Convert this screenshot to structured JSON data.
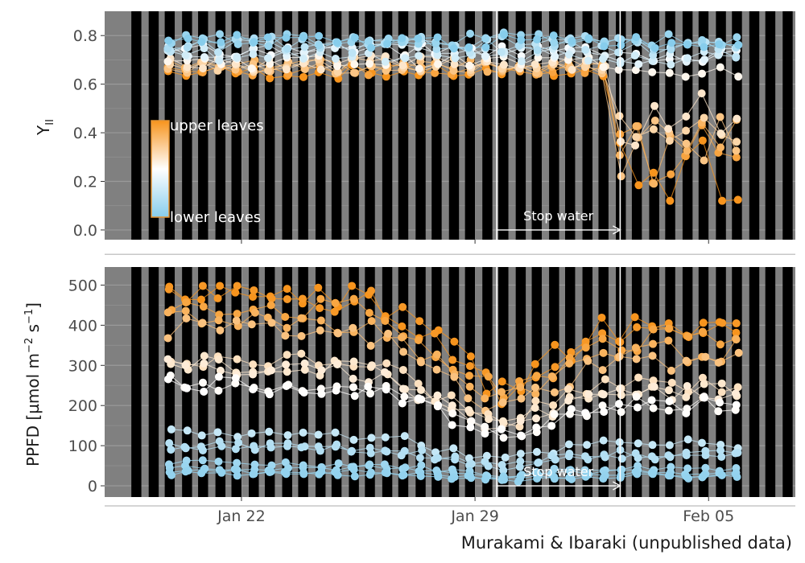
{
  "chart_data": [
    {
      "type": "scatter",
      "panel": "top",
      "ylabel_main": "Y",
      "ylabel_sub": "II",
      "ylim": [
        -0.04,
        0.9
      ],
      "yticks": [
        0.0,
        0.2,
        0.4,
        0.6,
        0.8
      ],
      "ytick_labels": [
        "0.0",
        "0.2",
        "0.4",
        "0.6",
        "0.8"
      ],
      "x_range_days": [
        -4.1,
        16.6
      ],
      "grid": true,
      "legend": {
        "placement": "left",
        "top_label": "upper leaves",
        "bottom_label": "lower leaves",
        "colors": [
          "#f7941d",
          "#ffffff",
          "#87cdec"
        ]
      },
      "annotation": {
        "text": "Stop water",
        "from_day": 7.65,
        "to_day": 11.35
      },
      "series_summary": {
        "upper_leaves_range": [
          0.55,
          0.8
        ],
        "lower_leaves_range": [
          0.7,
          0.84
        ],
        "after_stop_water_upper_range": [
          0.12,
          0.8
        ]
      }
    },
    {
      "type": "scatter",
      "panel": "bottom",
      "ylabel_parts": [
        "PPFD [µmol m",
        "−2",
        " s",
        "−1",
        "]"
      ],
      "ylim": [
        -28,
        545
      ],
      "yticks": [
        0,
        100,
        200,
        300,
        400,
        500
      ],
      "ytick_labels": [
        "0",
        "100",
        "200",
        "300",
        "400",
        "500"
      ],
      "x_range_days": [
        -4.1,
        16.6
      ],
      "grid": true,
      "annotation": {
        "text": "Stop water",
        "from_day": 7.65,
        "to_day": 11.35
      },
      "series_summary": {
        "upper_leaves_range": [
          240,
          495
        ],
        "lower_leaves_range": [
          10,
          140
        ]
      }
    }
  ],
  "x_axis": {
    "ticks": [
      {
        "day": 0,
        "label": "Jan 22"
      },
      {
        "day": 7,
        "label": "Jan 29"
      },
      {
        "day": 14,
        "label": "Feb 05"
      }
    ]
  },
  "caption": "Murakami & Ibaraki (unpublished data)",
  "colors": {
    "panel_bg": "#808080",
    "night": "#000000",
    "upper": "#f7941d",
    "mid": "#ffffff",
    "lower": "#87cdec"
  }
}
